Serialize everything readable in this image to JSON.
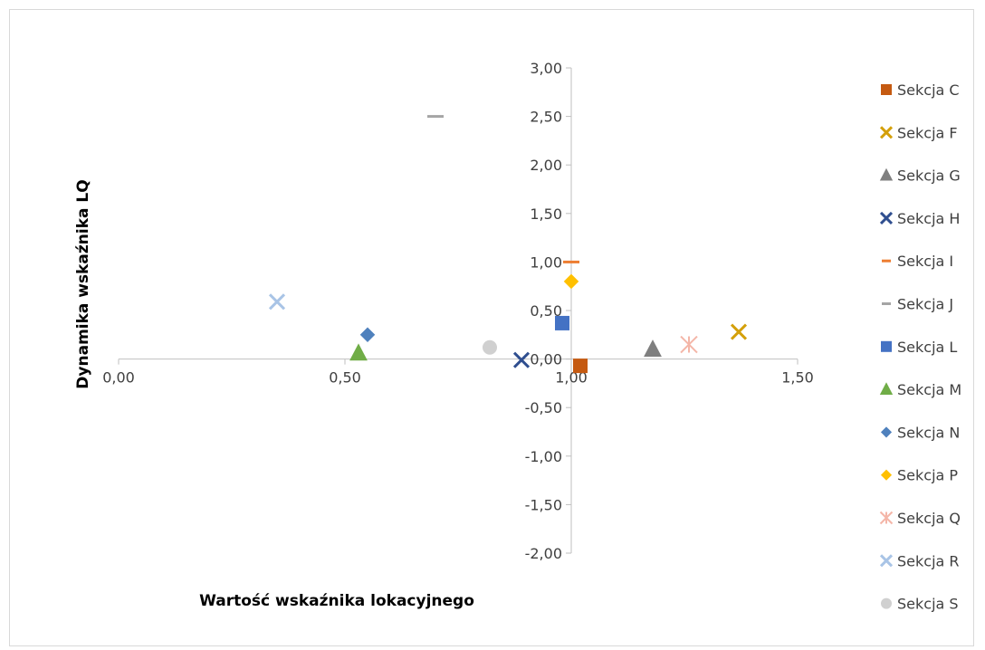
{
  "chart_data": {
    "type": "scatter",
    "xlabel": "Wartość wskaźnika lokacyjnego",
    "ylabel": "Dynamika wskaźnika LQ",
    "xlim": [
      0,
      1.5
    ],
    "ylim": [
      -2,
      3
    ],
    "x_ticks": [
      0,
      0.5,
      1.0,
      1.5
    ],
    "x_tick_labels": [
      "0,00",
      "0,50",
      "1,00",
      "1,50"
    ],
    "y_ticks": [
      3,
      2.5,
      2,
      1.5,
      1,
      0.5,
      0,
      -0.5,
      -1,
      -1.5,
      -2
    ],
    "y_tick_labels": [
      "3,00",
      "2,50",
      "2,00",
      "1,50",
      "1,00",
      "0,50",
      "0,00",
      "-0,50",
      "-1,00",
      "-1,50",
      "-2,00"
    ],
    "axes_cross_at": {
      "x": 1.0,
      "y": 0
    },
    "grid": false,
    "legend_position": "right",
    "series": [
      {
        "name": "Sekcja C",
        "marker": "square",
        "color": "#C55A11",
        "x": [
          1.02
        ],
        "y": [
          -0.07
        ]
      },
      {
        "name": "Sekcja F",
        "marker": "x",
        "color": "#D4A00A",
        "x": [
          1.37
        ],
        "y": [
          0.28
        ]
      },
      {
        "name": "Sekcja G",
        "marker": "triangle",
        "color": "#7F7F7F",
        "x": [
          1.18
        ],
        "y": [
          0.1
        ]
      },
      {
        "name": "Sekcja H",
        "marker": "x",
        "color": "#2F4E8F",
        "x": [
          0.89
        ],
        "y": [
          -0.01
        ]
      },
      {
        "name": "Sekcja I",
        "marker": "dash",
        "color": "#ED7D31",
        "x": [
          1.0
        ],
        "y": [
          1.0
        ]
      },
      {
        "name": "Sekcja J",
        "marker": "dash",
        "color": "#A5A5A5",
        "x": [
          0.7
        ],
        "y": [
          2.5
        ]
      },
      {
        "name": "Sekcja L",
        "marker": "square",
        "color": "#4472C4",
        "x": [
          0.98
        ],
        "y": [
          0.37
        ]
      },
      {
        "name": "Sekcja M",
        "marker": "triangle",
        "color": "#70AD47",
        "x": [
          0.53
        ],
        "y": [
          0.06
        ]
      },
      {
        "name": "Sekcja N",
        "marker": "diamond",
        "color": "#4F81BD",
        "x": [
          0.55
        ],
        "y": [
          0.25
        ]
      },
      {
        "name": "Sekcja P",
        "marker": "diamond",
        "color": "#FFC000",
        "x": [
          1.0
        ],
        "y": [
          0.8
        ]
      },
      {
        "name": "Sekcja Q",
        "marker": "star",
        "color": "#F4B6A8",
        "x": [
          1.26
        ],
        "y": [
          0.15
        ]
      },
      {
        "name": "Sekcja R",
        "marker": "x",
        "color": "#A9C4E6",
        "x": [
          0.35
        ],
        "y": [
          0.59
        ]
      },
      {
        "name": "Sekcja S",
        "marker": "circle",
        "color": "#D0D0D0",
        "x": [
          0.82
        ],
        "y": [
          0.12
        ]
      }
    ]
  }
}
